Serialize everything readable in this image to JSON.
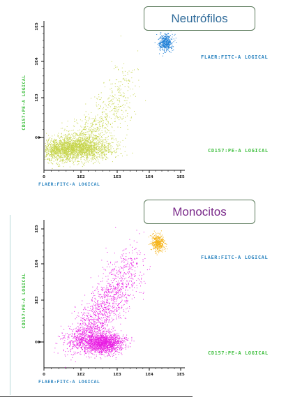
{
  "chart_data": [
    {
      "type": "scatter",
      "title": "Neutrófilos",
      "xlabel": "FLAER:FITC-A LOGICAL",
      "ylabel": "CD157:PE-A LOGICAL",
      "x_ticks": [
        "0",
        "1E2",
        "1E3",
        "1E4",
        "1E5"
      ],
      "y_ticks": [
        "0",
        "1E3",
        "1E4",
        "1E5"
      ],
      "side_labels": [
        "FLAER:FITC-A LOGICAL",
        "CD157:PE-A LOGICAL"
      ],
      "populations": [
        {
          "color": "#c5d44a",
          "center_log": [
            2.0,
            0.5
          ],
          "description": "main cluster"
        },
        {
          "color": "#1f7fd6",
          "center_log": [
            4.05,
            3.9
          ],
          "description": "compact cluster"
        }
      ]
    },
    {
      "type": "scatter",
      "title": "Monocitos",
      "xlabel": "FLAER:FITC-A LOGICAL",
      "ylabel": "CD157:PE-A LOGICAL",
      "x_ticks": [
        "0",
        "1E2",
        "1E3",
        "1E4",
        "1E5"
      ],
      "y_ticks": [
        "0",
        "1E3",
        "1E4",
        "1E5"
      ],
      "side_labels": [
        "FLAER:FITC-A LOGICAL",
        "CD157:PE-A LOGICAL"
      ],
      "populations": [
        {
          "color": "#e91ee3",
          "center_log": [
            2.0,
            0.6
          ],
          "description": "main cluster"
        },
        {
          "color": "#f5b41a",
          "center_log": [
            3.8,
            3.85
          ],
          "description": "compact cluster"
        }
      ]
    }
  ]
}
